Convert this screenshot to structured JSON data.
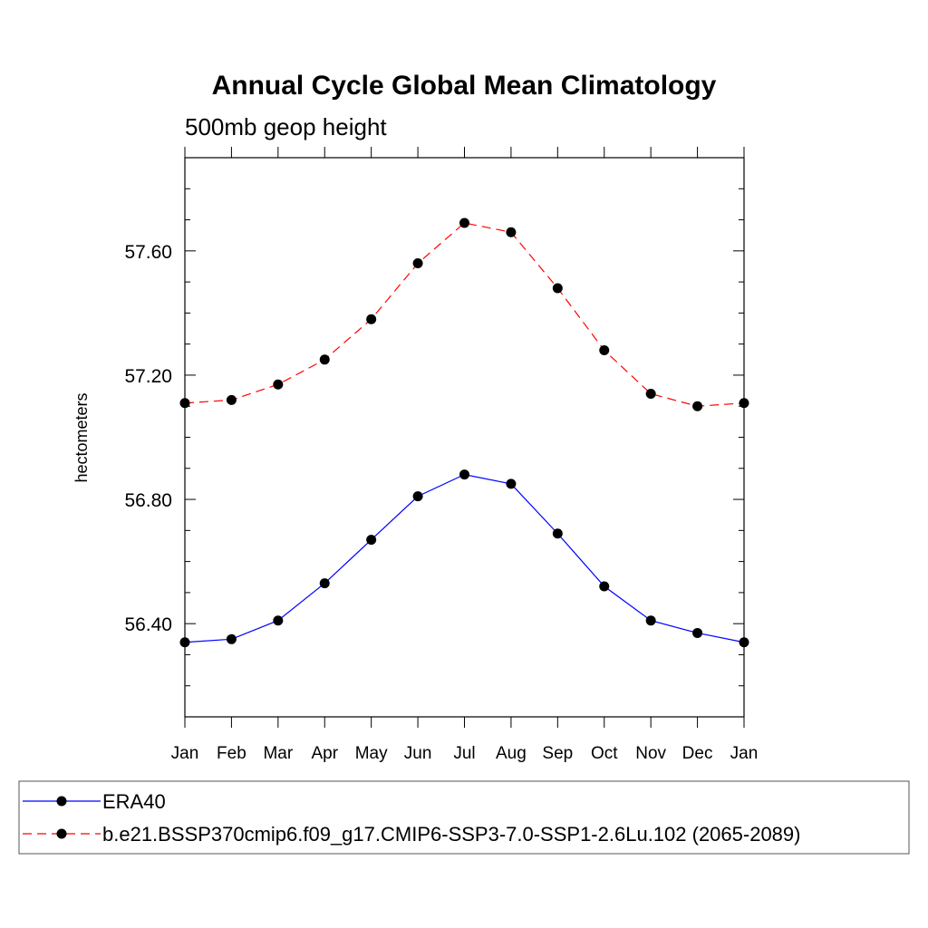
{
  "chart_data": {
    "type": "line",
    "title": "Annual Cycle Global Mean Climatology",
    "subtitle": "500mb geop height",
    "ylabel": "hectometers",
    "xlabel": "",
    "categories": [
      "Jan",
      "Feb",
      "Mar",
      "Apr",
      "May",
      "Jun",
      "Jul",
      "Aug",
      "Sep",
      "Oct",
      "Nov",
      "Dec",
      "Jan"
    ],
    "ylim": [
      56.1,
      57.9
    ],
    "yticks": [
      56.4,
      56.8,
      57.2,
      57.6
    ],
    "ytick_labels": [
      "56.40",
      "56.80",
      "57.20",
      "57.60"
    ],
    "yminor_step": 0.1,
    "grid": false,
    "legend_position": "bottom",
    "series": [
      {
        "name": "ERA40",
        "color": "#0000ff",
        "dash": "solid",
        "marker": "filled-circle",
        "values": [
          56.34,
          56.35,
          56.41,
          56.53,
          56.67,
          56.81,
          56.88,
          56.85,
          56.69,
          56.52,
          56.41,
          56.37,
          56.34
        ]
      },
      {
        "name": "b.e21.BSSP370cmip6.f09_g17.CMIP6-SSP3-7.0-SSP1-2.6Lu.102 (2065-2089)",
        "color": "#ff0000",
        "dash": "dashed",
        "marker": "filled-circle",
        "values": [
          57.11,
          57.12,
          57.17,
          57.25,
          57.38,
          57.56,
          57.69,
          57.66,
          57.48,
          57.28,
          57.14,
          57.1,
          57.11
        ]
      }
    ]
  }
}
